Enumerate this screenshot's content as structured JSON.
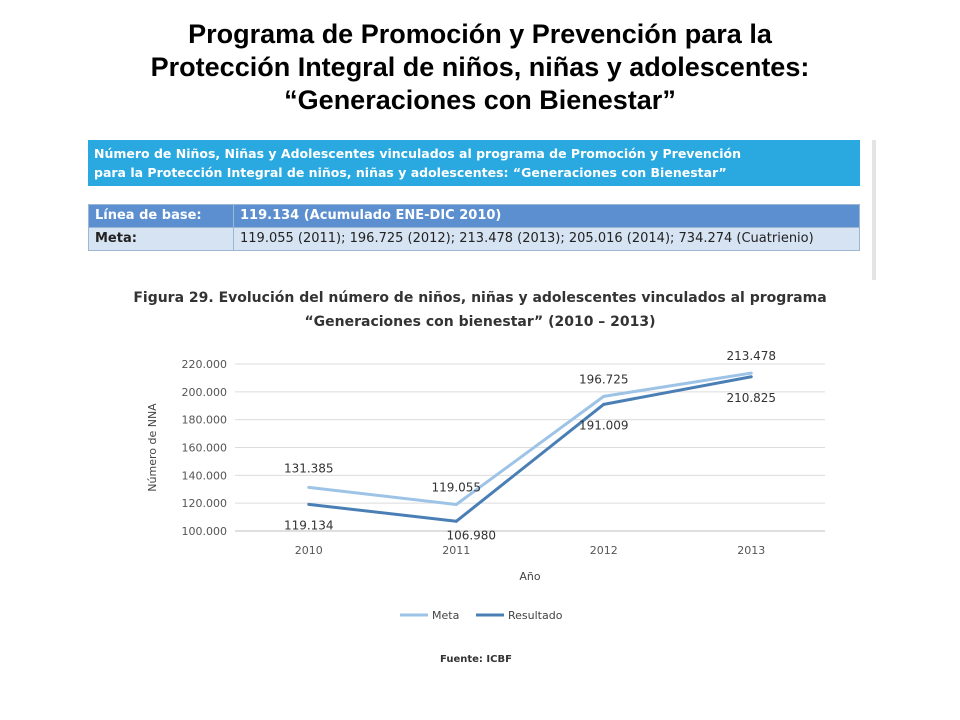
{
  "slide": {
    "title_lines": [
      "Programa de Promoción y Prevención para la",
      "Protección Integral de niños, niñas y adolescentes:",
      "“Generaciones con Bienestar”"
    ]
  },
  "banner": {
    "lines": [
      "Número de Niños, Niñas y Adolescentes vinculados al programa de Promoción y Prevención",
      "para la Protección Integral de niños, niñas y adolescentes: “Generaciones con Bienestar”"
    ],
    "color": "#2aa9e0"
  },
  "table": {
    "baseline_label": "Línea de base:",
    "baseline_value": "119.134 (Acumulado ENE-DIC 2010)",
    "meta_label": "Meta:",
    "meta_value": "119.055 (2011); 196.725 (2012); 213.478 (2013); 205.016 (2014); 734.274 (Cuatrienio)"
  },
  "figure": {
    "caption_lines": [
      "Figura 29. Evolución del número de niños, niñas y adolescentes vinculados al programa",
      "“Generaciones con bienestar” (2010 – 2013)"
    ],
    "source": "Fuente: ICBF"
  },
  "chart_data": {
    "type": "line",
    "categories": [
      "2010",
      "2011",
      "2012",
      "2013"
    ],
    "series": [
      {
        "name": "Meta",
        "values": [
          131385,
          119055,
          196725,
          213478
        ],
        "labels": [
          "131.385",
          "119.055",
          "196.725",
          "213.478"
        ],
        "color": "#9dc3e6"
      },
      {
        "name": "Resultado",
        "values": [
          119134,
          106980,
          191009,
          210825
        ],
        "labels": [
          "119.134",
          "106.980",
          "191.009",
          "210.825"
        ],
        "color": "#4a7fb5"
      }
    ],
    "xlabel": "Año",
    "ylabel": "Número de NNA",
    "ylim": [
      100000,
      220000
    ],
    "yticks": [
      100000,
      120000,
      140000,
      160000,
      180000,
      200000,
      220000
    ],
    "ytick_labels": [
      "100.000",
      "120.000",
      "140.000",
      "160.000",
      "180.000",
      "200.000",
      "220.000"
    ],
    "grid": true,
    "legend_position": "bottom"
  }
}
